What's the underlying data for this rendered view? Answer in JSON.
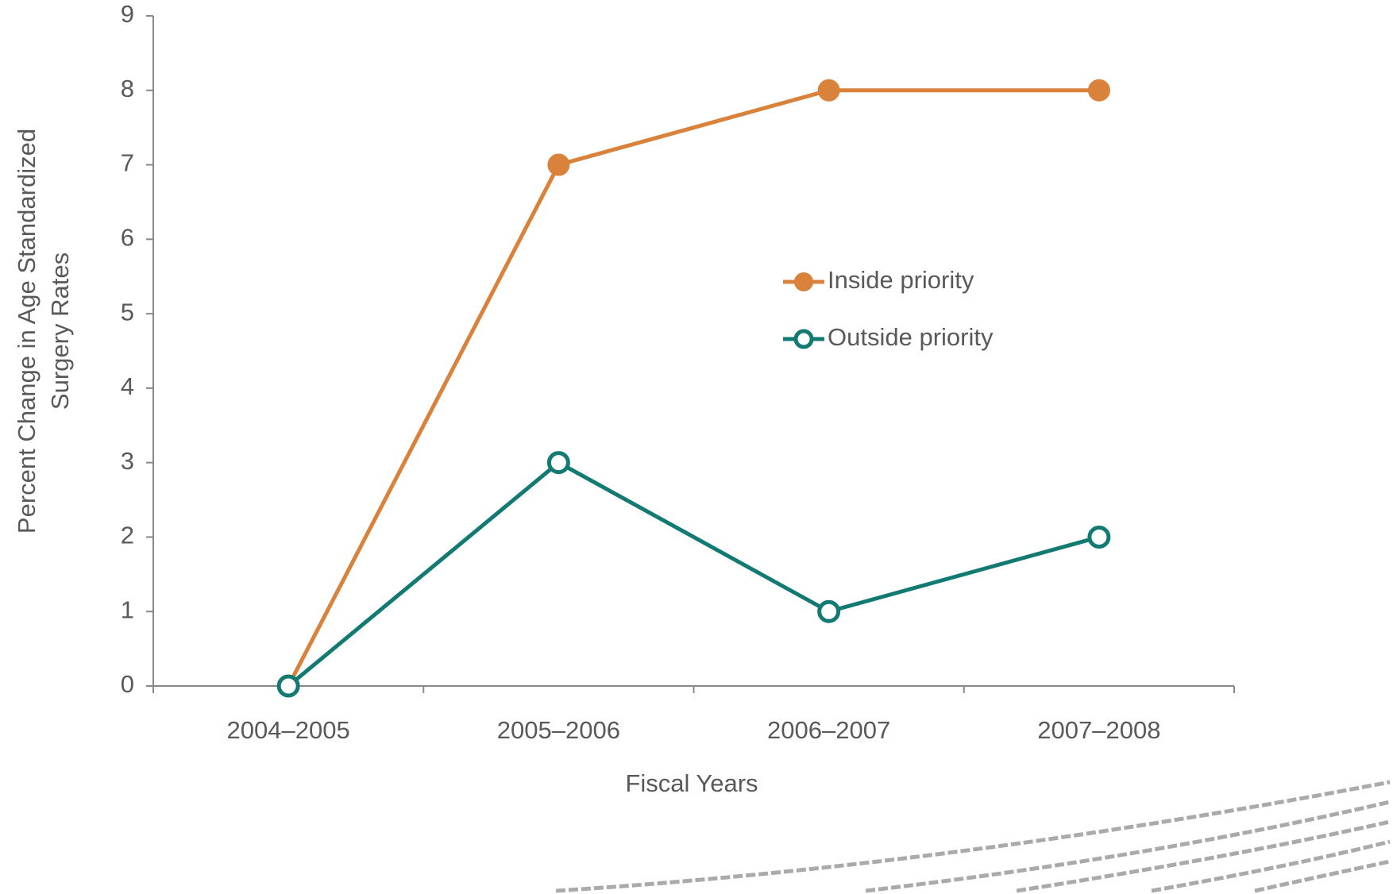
{
  "chart_data": {
    "type": "line",
    "xlabel": "Fiscal Years",
    "ylabel": [
      "Percent Change in Age Standardized",
      "Surgery Rates"
    ],
    "categories": [
      "2004–2005",
      "2005–2006",
      "2006–2007",
      "2007–2008"
    ],
    "series": [
      {
        "name": "Inside priority",
        "color": "#d9823b",
        "marker": "filled",
        "values": [
          0,
          7,
          8,
          8
        ]
      },
      {
        "name": "Outside priority",
        "color": "#127a72",
        "marker": "hollow",
        "values": [
          0,
          3,
          1,
          2
        ]
      }
    ],
    "ylim": [
      0,
      9
    ],
    "yticks": [
      0,
      1,
      2,
      3,
      4,
      5,
      6,
      7,
      8,
      9
    ],
    "grid": false,
    "legend": "right"
  }
}
